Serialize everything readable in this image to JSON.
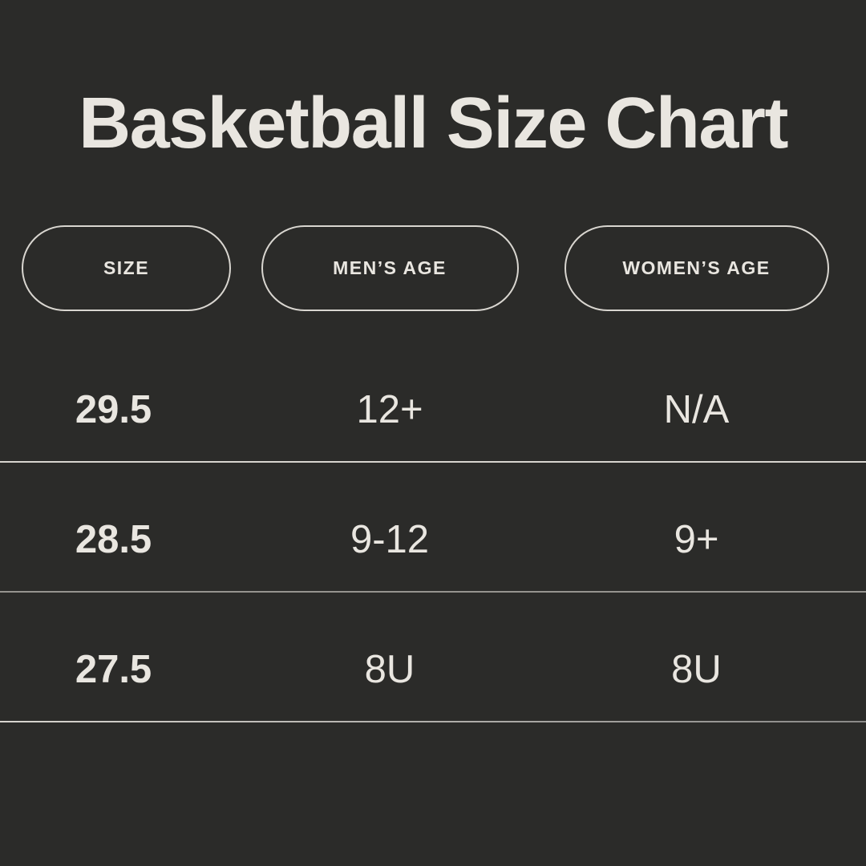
{
  "page": {
    "title": "Basketball Size Chart"
  },
  "table": {
    "headers": [
      {
        "label": "SIZE"
      },
      {
        "label": "MEN’S AGE"
      },
      {
        "label": "WOMEN’S AGE"
      }
    ],
    "rows": [
      {
        "size": "29.5",
        "mens_age": "12+",
        "womens_age": "N/A"
      },
      {
        "size": "28.5",
        "mens_age": "9-12",
        "womens_age": "9+"
      },
      {
        "size": "27.5",
        "mens_age": "8U",
        "womens_age": "8U"
      }
    ]
  },
  "chart_data": {
    "type": "table",
    "title": "Basketball Size Chart",
    "columns": [
      "SIZE",
      "MEN’S AGE",
      "WOMEN’S AGE"
    ],
    "rows": [
      [
        "29.5",
        "12+",
        "N/A"
      ],
      [
        "28.5",
        "9-12",
        "9+"
      ],
      [
        "27.5",
        "8U",
        "8U"
      ]
    ]
  },
  "colors": {
    "background": "#2b2b29",
    "text": "#e9e6e0",
    "pill_border": "#d9d6d0",
    "divider_row1": "#d8d5cf",
    "divider_row2": "#96948f",
    "divider_row3_start": "#d8d5cf",
    "divider_row3_end": "#8a8987"
  }
}
